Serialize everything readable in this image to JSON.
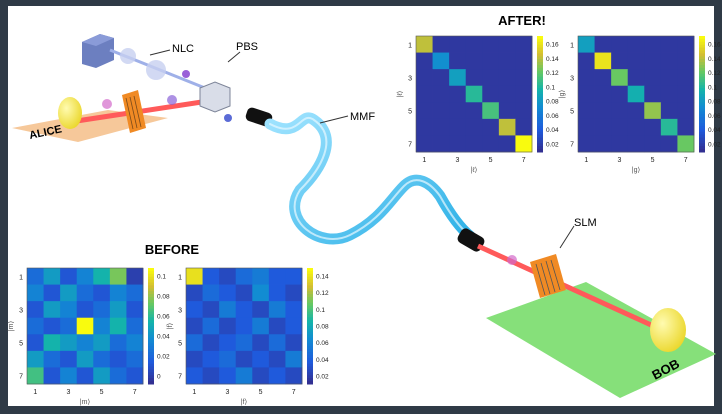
{
  "labels": {
    "nlc": "NLC",
    "pbs": "PBS",
    "mmf": "MMF",
    "slm": "SLM",
    "alice": "ALICE",
    "bob": "BOB",
    "before": "BEFORE",
    "after": "AFTER!"
  },
  "colors": {
    "background": "#ffffff",
    "frame": "#2f3a46",
    "laser": "#ff5a5a",
    "fiber": "#5cc8f0",
    "alice_table": "#f6c89a",
    "bob_table": "#86e07a",
    "slm_frame": "#f08a24",
    "detector": "#f4e64a"
  },
  "matrices": [
    {
      "id": "before_left",
      "colorbar_ticks": [
        "0.1",
        "0.08",
        "0.06",
        "0.04",
        "0.02",
        "0"
      ],
      "ytick_labels": [
        "1",
        "3",
        "5",
        "7"
      ],
      "xtick_labels": [
        "1",
        "3",
        "5",
        "7"
      ],
      "xlabel": "|m⟩",
      "ylabel": "|m⟩",
      "vmax": 0.11,
      "values": [
        [
          0.03,
          0.05,
          0.02,
          0.04,
          0.06,
          0.08,
          0.01
        ],
        [
          0.04,
          0.02,
          0.05,
          0.03,
          0.02,
          0.04,
          0.03
        ],
        [
          0.02,
          0.05,
          0.04,
          0.02,
          0.03,
          0.05,
          0.02
        ],
        [
          0.03,
          0.02,
          0.03,
          0.11,
          0.04,
          0.06,
          0.03
        ],
        [
          0.02,
          0.06,
          0.05,
          0.04,
          0.05,
          0.03,
          0.04
        ],
        [
          0.05,
          0.03,
          0.02,
          0.05,
          0.03,
          0.02,
          0.03
        ],
        [
          0.07,
          0.02,
          0.04,
          0.02,
          0.05,
          0.03,
          0.02
        ]
      ]
    },
    {
      "id": "before_right",
      "colorbar_ticks": [
        "0.14",
        "0.12",
        "0.1",
        "0.08",
        "0.06",
        "0.04",
        "0.02"
      ],
      "ytick_labels": [
        "1",
        "3",
        "5",
        "7"
      ],
      "xtick_labels": [
        "1",
        "3",
        "5",
        "7"
      ],
      "xlabel": "|f⟩",
      "ylabel": "|f⟩",
      "vmax": 0.15,
      "values": [
        [
          0.14,
          0.03,
          0.02,
          0.04,
          0.05,
          0.03,
          0.03
        ],
        [
          0.02,
          0.04,
          0.03,
          0.02,
          0.06,
          0.03,
          0.02
        ],
        [
          0.03,
          0.02,
          0.05,
          0.03,
          0.02,
          0.05,
          0.03
        ],
        [
          0.02,
          0.04,
          0.02,
          0.03,
          0.05,
          0.02,
          0.03
        ],
        [
          0.04,
          0.02,
          0.03,
          0.04,
          0.02,
          0.04,
          0.02
        ],
        [
          0.02,
          0.03,
          0.04,
          0.02,
          0.03,
          0.02,
          0.05
        ],
        [
          0.03,
          0.02,
          0.03,
          0.05,
          0.02,
          0.03,
          0.02
        ]
      ]
    },
    {
      "id": "after_left",
      "colorbar_ticks": [
        "0.16",
        "0.14",
        "0.12",
        "0.1",
        "0.08",
        "0.06",
        "0.04",
        "0.02"
      ],
      "ytick_labels": [
        "1",
        "3",
        "5",
        "7"
      ],
      "xtick_labels": [
        "1",
        "3",
        "5",
        "7"
      ],
      "xlabel": "|ℓ⟩",
      "ylabel": "|ℓ⟩",
      "vmax": 0.17,
      "values": [
        [
          0.14,
          0.01,
          0.01,
          0.01,
          0.01,
          0.01,
          0.01
        ],
        [
          0.01,
          0.07,
          0.01,
          0.01,
          0.01,
          0.01,
          0.01
        ],
        [
          0.01,
          0.01,
          0.08,
          0.01,
          0.01,
          0.01,
          0.01
        ],
        [
          0.01,
          0.01,
          0.01,
          0.1,
          0.01,
          0.01,
          0.01
        ],
        [
          0.01,
          0.01,
          0.01,
          0.01,
          0.11,
          0.01,
          0.01
        ],
        [
          0.01,
          0.01,
          0.01,
          0.01,
          0.01,
          0.14,
          0.01
        ],
        [
          0.01,
          0.01,
          0.01,
          0.01,
          0.01,
          0.01,
          0.17
        ]
      ]
    },
    {
      "id": "after_right",
      "colorbar_ticks": [
        "0.16",
        "0.14",
        "0.12",
        "0.1",
        "0.08",
        "0.06",
        "0.04",
        "0.02"
      ],
      "ytick_labels": [
        "1",
        "3",
        "5",
        "7"
      ],
      "xtick_labels": [
        "1",
        "3",
        "5",
        "7"
      ],
      "xlabel": "|g⟩",
      "ylabel": "|g⟩",
      "vmax": 0.17,
      "values": [
        [
          0.08,
          0.01,
          0.01,
          0.01,
          0.01,
          0.01,
          0.01
        ],
        [
          0.01,
          0.16,
          0.01,
          0.01,
          0.01,
          0.01,
          0.01
        ],
        [
          0.01,
          0.01,
          0.12,
          0.01,
          0.01,
          0.01,
          0.01
        ],
        [
          0.01,
          0.01,
          0.01,
          0.09,
          0.01,
          0.01,
          0.01
        ],
        [
          0.01,
          0.01,
          0.01,
          0.01,
          0.13,
          0.01,
          0.01
        ],
        [
          0.01,
          0.01,
          0.01,
          0.01,
          0.01,
          0.1,
          0.01
        ],
        [
          0.01,
          0.01,
          0.01,
          0.01,
          0.01,
          0.01,
          0.12
        ]
      ]
    }
  ]
}
